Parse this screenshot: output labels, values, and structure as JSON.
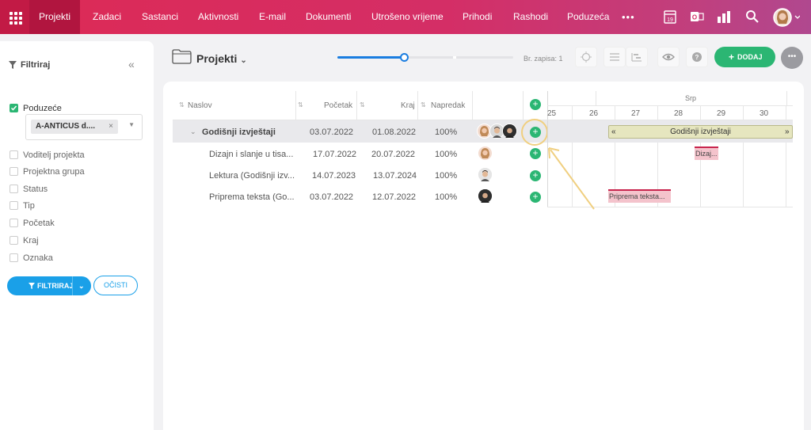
{
  "nav": {
    "items": [
      "Projekti",
      "Zadaci",
      "Sastanci",
      "Aktivnosti",
      "E-mail",
      "Dokumenti",
      "Utrošeno vrijeme",
      "Prihodi",
      "Rashodi",
      "Poduzeća"
    ],
    "more": "•••",
    "calendar_day": "19"
  },
  "sidebar": {
    "title": "Filtriraj",
    "collapse": "«",
    "company_label": "Poduzeće",
    "company_value": "A-ANTICUS d....",
    "filters": [
      "Voditelj projekta",
      "Projektna grupa",
      "Status",
      "Tip",
      "Početak",
      "Kraj",
      "Oznaka"
    ],
    "filter_button": "FILTRIRAJ",
    "clear_button": "OČISTI"
  },
  "toolbar": {
    "title": "Projekti",
    "records": "Br. zapisa: 1",
    "add_button": "DODAJ",
    "more": "•••",
    "slider_value": 0.38
  },
  "table": {
    "headers": {
      "title": "Naslov",
      "start": "Početak",
      "end": "Kraj",
      "progress": "Napredak"
    },
    "rows": [
      {
        "title": "Godišnji izvještaji",
        "start": "03.07.2022",
        "end": "01.08.2022",
        "progress": "100%",
        "group": true
      },
      {
        "title": "Dizajn i slanje u tisa...",
        "start": "17.07.2022",
        "end": "20.07.2022",
        "progress": "100%"
      },
      {
        "title": "Lektura (Godišnji izv...",
        "start": "14.07.2023",
        "end": "13.07.2024",
        "progress": "100%"
      },
      {
        "title": "Priprema teksta (Go...",
        "start": "03.07.2022",
        "end": "12.07.2022",
        "progress": "100%"
      }
    ]
  },
  "gantt": {
    "month": "Srp",
    "days": [
      "25",
      "26",
      "27",
      "28",
      "29",
      "30"
    ],
    "bars": {
      "group": "Godišnji izvještaji",
      "dizajn": "Dizaj...",
      "priprema": "Priprema teksta..."
    },
    "left_arrow": "«",
    "right_arrow": "»"
  },
  "colors": {
    "nav": "#dd2a55",
    "green": "#2bb673",
    "blue": "#1aa0e8",
    "bar_olive": "#e6e6bf",
    "bar_pink": "#f0a8b8"
  }
}
